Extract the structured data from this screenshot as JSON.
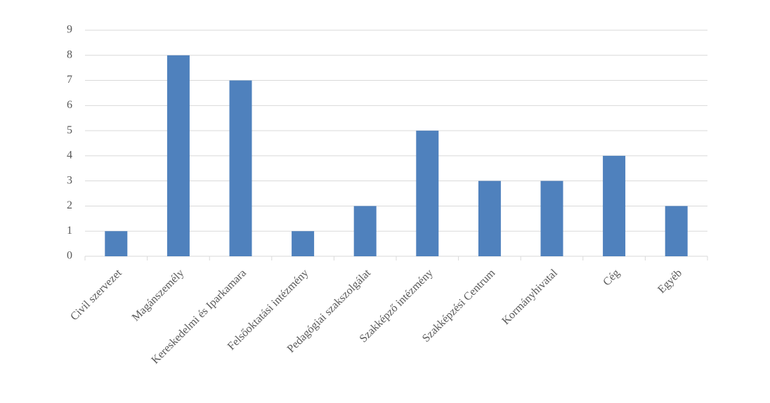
{
  "chart_data": {
    "type": "bar",
    "categories": [
      "Civil szervezet",
      "Magánszemély",
      "Kereskedelmi és Iparkamara",
      "Felsőoktatási intézmény",
      "Pedagógiai szakszolgálat",
      "Szakképző intézmény",
      "Szakképzési Centrum",
      "Kormányhivatal",
      "Cég",
      "Egyéb"
    ],
    "values": [
      1,
      8,
      7,
      1,
      2,
      5,
      3,
      3,
      4,
      2
    ],
    "color": "#4f81bd",
    "ylim": [
      0,
      9
    ],
    "yticks": [
      0,
      1,
      2,
      3,
      4,
      5,
      6,
      7,
      8,
      9
    ],
    "grid": true
  }
}
